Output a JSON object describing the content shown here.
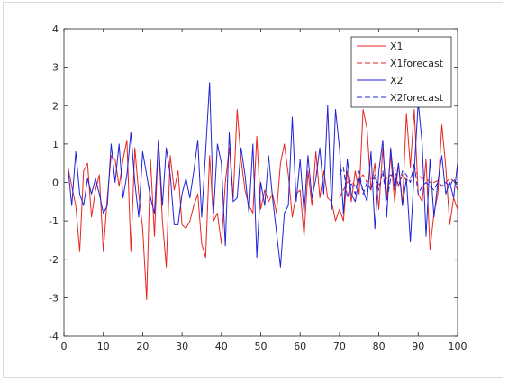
{
  "chart_data": {
    "type": "line",
    "title": "",
    "xlabel": "",
    "ylabel": "",
    "xlim": [
      0,
      100
    ],
    "ylim": [
      -4,
      4
    ],
    "xticks": [
      "0",
      "10",
      "20",
      "30",
      "40",
      "50",
      "60",
      "70",
      "80",
      "90",
      "100"
    ],
    "yticks": [
      "4",
      "3",
      "2",
      "1",
      "0",
      "-1",
      "-2",
      "-3",
      "-4"
    ],
    "grid": false,
    "legend_position": "top-right",
    "legend": [
      "X1",
      "X1forecast",
      "X2",
      "X2forecast"
    ],
    "series": [
      {
        "name": "X1",
        "color": "#e8251f",
        "style": "solid",
        "x": [
          1,
          2,
          3,
          4,
          5,
          6,
          7,
          8,
          9,
          10,
          11,
          12,
          13,
          14,
          15,
          16,
          17,
          18,
          19,
          20,
          21,
          22,
          23,
          24,
          25,
          26,
          27,
          28,
          29,
          30,
          31,
          32,
          33,
          34,
          35,
          36,
          37,
          38,
          39,
          40,
          41,
          42,
          43,
          44,
          45,
          46,
          47,
          48,
          49,
          50,
          51,
          52,
          53,
          54,
          55,
          56,
          57,
          58,
          59,
          60,
          61,
          62,
          63,
          64,
          65,
          66,
          67,
          68,
          69,
          70,
          71,
          72,
          73,
          74,
          75,
          76,
          77,
          78,
          79,
          80,
          81,
          82,
          83,
          84,
          85,
          86,
          87,
          88,
          89,
          90,
          91,
          92,
          93,
          94,
          95,
          96,
          97,
          98,
          99,
          100
        ],
        "y": [
          0.4,
          -0.1,
          -0.6,
          -1.8,
          0.3,
          0.5,
          -0.9,
          -0.2,
          0.2,
          -1.8,
          -0.4,
          0.7,
          0.6,
          -0.1,
          0.6,
          1.1,
          -1.8,
          0.9,
          -0.3,
          -1.2,
          -3.05,
          0.6,
          -1.4,
          1.1,
          -1.0,
          -2.2,
          0.7,
          -0.2,
          0.3,
          -1.1,
          -1.2,
          -1.0,
          -0.6,
          -0.3,
          -1.6,
          -1.95,
          0.7,
          -1.0,
          -0.8,
          -1.6,
          0.0,
          0.9,
          -0.4,
          1.9,
          0.6,
          -0.2,
          -0.6,
          -0.8,
          1.2,
          -0.7,
          -0.2,
          -0.5,
          -0.3,
          -0.8,
          0.5,
          1.0,
          0.2,
          -0.9,
          -0.3,
          -0.2,
          -1.4,
          0.3,
          -0.6,
          0.8,
          -0.4,
          0.3,
          -0.4,
          -0.5,
          -1.0,
          -0.7,
          -1.0,
          0.3,
          -0.5,
          0.3,
          -0.3,
          1.9,
          1.4,
          -0.2,
          0.5,
          -0.7,
          0.9,
          -0.4,
          0.7,
          -0.5,
          0.5,
          -0.6,
          1.8,
          0.4,
          1.9,
          -0.3,
          -0.5,
          0.6,
          -1.75,
          -0.8,
          -0.3,
          1.5,
          0.4,
          -1.1,
          -0.4,
          -0.7
        ]
      },
      {
        "name": "X1forecast",
        "color": "#e8251f",
        "style": "dashed",
        "x": [
          70,
          71,
          72,
          73,
          74,
          75,
          76,
          77,
          78,
          79,
          80,
          81,
          82,
          83,
          84,
          85,
          86,
          87,
          88,
          89,
          90,
          91,
          92,
          93,
          94,
          95,
          96,
          97,
          98,
          99,
          100
        ],
        "y": [
          -0.4,
          -0.2,
          0.0,
          0.05,
          -0.1,
          0.1,
          0.2,
          0.0,
          0.1,
          0.1,
          -0.05,
          0.0,
          0.1,
          0.2,
          0.15,
          -0.1,
          0.2,
          0.05,
          0.1,
          0.3,
          0.2,
          0.1,
          0.1,
          0.0,
          0.0,
          0.05,
          -0.1,
          0.0,
          0.1,
          0.05,
          -0.2
        ]
      },
      {
        "name": "X2",
        "color": "#2023d8",
        "style": "solid",
        "x": [
          1,
          2,
          3,
          4,
          5,
          6,
          7,
          8,
          9,
          10,
          11,
          12,
          13,
          14,
          15,
          16,
          17,
          18,
          19,
          20,
          21,
          22,
          23,
          24,
          25,
          26,
          27,
          28,
          29,
          30,
          31,
          32,
          33,
          34,
          35,
          36,
          37,
          38,
          39,
          40,
          41,
          42,
          43,
          44,
          45,
          46,
          47,
          48,
          49,
          50,
          51,
          52,
          53,
          54,
          55,
          56,
          57,
          58,
          59,
          60,
          61,
          62,
          63,
          64,
          65,
          66,
          67,
          68,
          69,
          70,
          71,
          72,
          73,
          74,
          75,
          76,
          77,
          78,
          79,
          80,
          81,
          82,
          83,
          84,
          85,
          86,
          87,
          88,
          89,
          90,
          91,
          92,
          93,
          94,
          95,
          96,
          97,
          98,
          99,
          100
        ],
        "y": [
          0.4,
          -0.6,
          0.8,
          -0.3,
          -0.6,
          0.1,
          -0.3,
          0.1,
          -0.3,
          -0.8,
          -0.6,
          1.0,
          0.0,
          1.0,
          -0.4,
          0.2,
          1.3,
          0.0,
          -0.9,
          0.8,
          0.2,
          -0.4,
          -0.8,
          1.1,
          -0.6,
          0.9,
          0.2,
          -1.1,
          -1.1,
          -0.3,
          0.1,
          -0.4,
          0.3,
          1.1,
          -0.9,
          0.8,
          2.6,
          -0.8,
          1.0,
          0.5,
          -1.65,
          1.3,
          -0.5,
          -0.4,
          0.9,
          0.2,
          -0.8,
          1.0,
          -1.95,
          0.0,
          -0.6,
          0.7,
          -0.4,
          -1.3,
          -2.2,
          -0.8,
          -0.6,
          1.7,
          -0.5,
          0.6,
          -0.8,
          0.7,
          -0.4,
          0.1,
          0.9,
          -0.3,
          2.0,
          -0.7,
          1.9,
          0.9,
          -0.8,
          0.6,
          -0.3,
          -0.5,
          0.1,
          -0.2,
          -0.5,
          0.8,
          -1.2,
          0.3,
          1.1,
          -0.9,
          0.9,
          -0.2,
          0.5,
          -0.6,
          0.1,
          -1.55,
          0.3,
          2.1,
          1.0,
          -1.4,
          0.6,
          -0.9,
          0.0,
          0.7,
          -0.3,
          0.0,
          -0.4,
          0.5
        ]
      },
      {
        "name": "X2forecast",
        "color": "#2023d8",
        "style": "dashed",
        "x": [
          70,
          71,
          72,
          73,
          74,
          75,
          76,
          77,
          78,
          79,
          80,
          81,
          82,
          83,
          84,
          85,
          86,
          87,
          88,
          89,
          90,
          91,
          92,
          93,
          94,
          95,
          96,
          97,
          98,
          99,
          100
        ],
        "y": [
          0.2,
          0.4,
          -0.4,
          0.0,
          -0.3,
          0.3,
          -0.3,
          0.0,
          -0.2,
          0.2,
          -0.2,
          0.3,
          -0.5,
          0.1,
          0.4,
          -0.1,
          0.3,
          0.2,
          0.0,
          0.5,
          -0.3,
          -0.1,
          0.0,
          -0.1,
          -0.2,
          0.0,
          -0.1,
          0.0,
          -0.1,
          0.1,
          -0.1
        ]
      }
    ]
  }
}
